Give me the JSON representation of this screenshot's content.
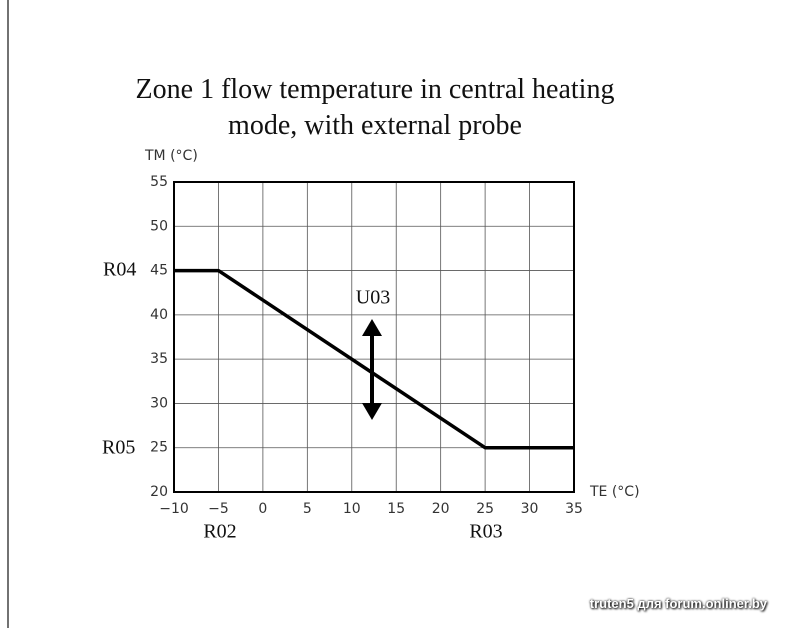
{
  "chart_data": {
    "type": "line",
    "title": "Zone 1 flow temperature in central heating mode, with external probe",
    "y_label": "TM (°C)",
    "x_label": "TE (°C)",
    "x": [
      -10,
      -5,
      25,
      35
    ],
    "series": [
      {
        "name": "TM",
        "color": "#000000",
        "values": [
          45,
          45,
          25,
          25
        ]
      }
    ],
    "xlim": [
      -10,
      35
    ],
    "xticks": [
      {
        "value": -10,
        "label": "−10"
      },
      {
        "value": -5,
        "label": "−5"
      },
      0,
      5,
      10,
      15,
      20,
      25,
      30,
      35
    ],
    "ylim": [
      20,
      55
    ],
    "yticks": [
      20,
      25,
      30,
      35,
      40,
      45,
      50,
      55
    ],
    "grid": true,
    "annotations": [
      "R04",
      "R05",
      "R02",
      "R03",
      "U03"
    ]
  },
  "watermark": "truten5 для forum.onliner.by"
}
